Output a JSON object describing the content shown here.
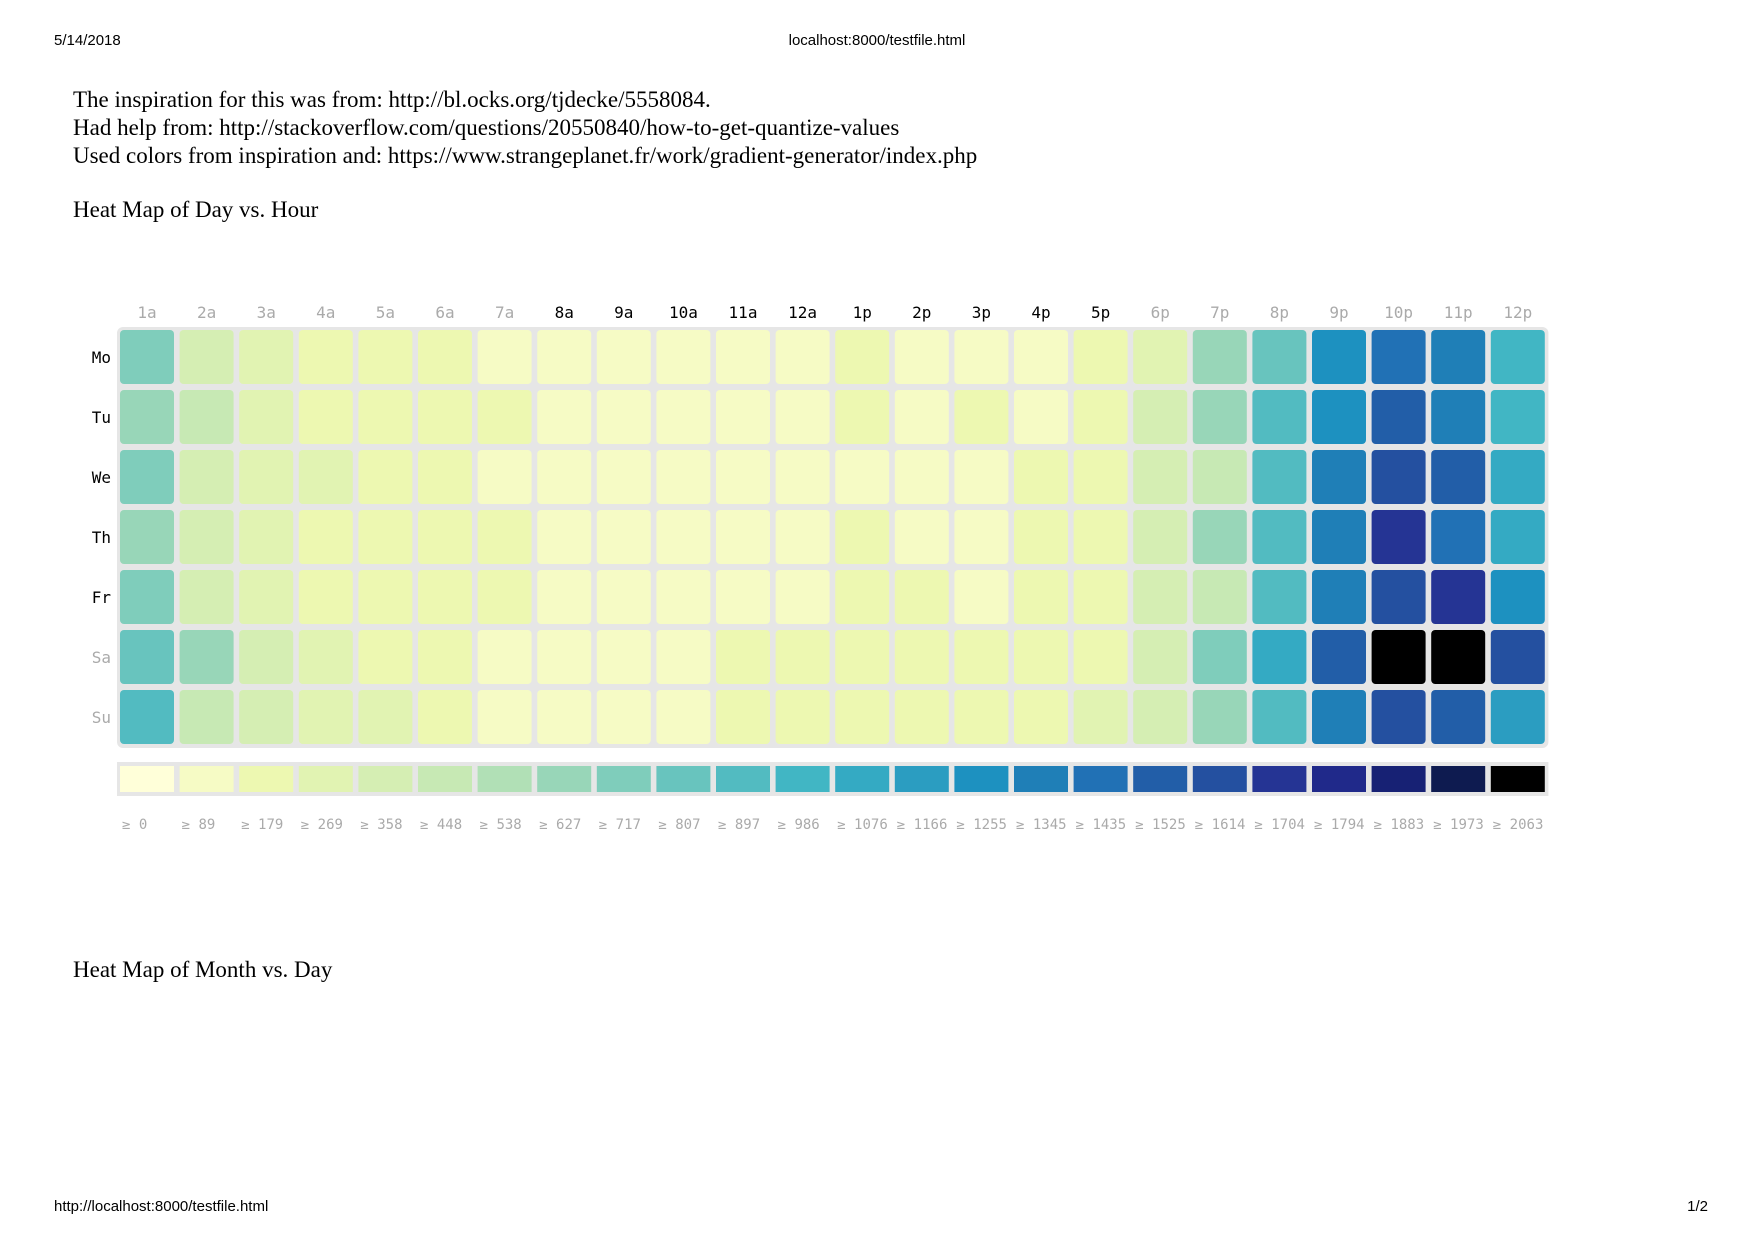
{
  "print_header": {
    "date": "5/14/2018",
    "title": "localhost:8000/testfile.html"
  },
  "print_footer": {
    "url": "http://localhost:8000/testfile.html",
    "page": "1/2"
  },
  "credits": [
    "The inspiration for this was from: http://bl.ocks.org/tjdecke/5558084.",
    "Had help from: http://stackoverflow.com/questions/20550840/how-to-get-quantize-values",
    "Used colors from inspiration and: https://www.strangeplanet.fr/work/gradient-generator/index.php"
  ],
  "section_titles": [
    "Heat Map of Day vs. Hour",
    "Heat Map of Month vs. Day"
  ],
  "chart_data": {
    "type": "heatmap",
    "title": "Heat Map of Day vs. Hour",
    "days": [
      "Mo",
      "Tu",
      "We",
      "Th",
      "Fr",
      "Sa",
      "Su"
    ],
    "hours": [
      "1a",
      "2a",
      "3a",
      "4a",
      "5a",
      "6a",
      "7a",
      "8a",
      "9a",
      "10a",
      "11a",
      "12a",
      "1p",
      "2p",
      "3p",
      "4p",
      "5p",
      "6p",
      "7p",
      "8p",
      "9p",
      "10p",
      "11p",
      "12p"
    ],
    "hour_label_active": [
      false,
      false,
      false,
      false,
      false,
      false,
      false,
      true,
      true,
      true,
      true,
      true,
      true,
      true,
      true,
      true,
      true,
      false,
      false,
      false,
      false,
      false,
      false,
      false
    ],
    "day_label_active": [
      true,
      true,
      true,
      true,
      true,
      false,
      false
    ],
    "label_colors": {
      "active": "#000000",
      "inactive": "#aaaaaa"
    },
    "legend_thresholds": [
      0,
      89,
      179,
      269,
      358,
      448,
      538,
      627,
      717,
      807,
      897,
      986,
      1076,
      1166,
      1255,
      1345,
      1435,
      1525,
      1614,
      1704,
      1794,
      1883,
      1973,
      2063
    ],
    "legend_labels": [
      "≥ 0",
      "≥ 89",
      "≥ 179",
      "≥ 269",
      "≥ 358",
      "≥ 448",
      "≥ 538",
      "≥ 627",
      "≥ 717",
      "≥ 807",
      "≥ 897",
      "≥ 986",
      "≥ 1076",
      "≥ 1166",
      "≥ 1255",
      "≥ 1345",
      "≥ 1435",
      "≥ 1525",
      "≥ 1614",
      "≥ 1704",
      "≥ 1794",
      "≥ 1883",
      "≥ 1973",
      "≥ 2063"
    ],
    "colors": [
      "#ffffd9",
      "#f6fbc5",
      "#edf8b1",
      "#e1f3b2",
      "#d5eeb3",
      "#c7e9b4",
      "#b1e0b6",
      "#98d6b8",
      "#7fcdbb",
      "#68c4be",
      "#52bbc1",
      "#41b6c4",
      "#34aac3",
      "#2b9dc1",
      "#1d91c0",
      "#1f7fb7",
      "#2171b5",
      "#225ea8",
      "#2450a0",
      "#253494",
      "#20298a",
      "#172174",
      "#0e1b50",
      "#000000"
    ],
    "values": [
      [
        717,
        358,
        269,
        179,
        179,
        179,
        89,
        89,
        89,
        89,
        89,
        89,
        179,
        89,
        89,
        89,
        179,
        269,
        627,
        807,
        1255,
        1435,
        1345,
        986
      ],
      [
        627,
        448,
        269,
        179,
        179,
        179,
        179,
        89,
        89,
        89,
        89,
        89,
        179,
        89,
        179,
        89,
        179,
        358,
        627,
        897,
        1255,
        1525,
        1345,
        986
      ],
      [
        717,
        358,
        269,
        269,
        179,
        179,
        89,
        89,
        89,
        89,
        89,
        89,
        89,
        89,
        89,
        179,
        179,
        358,
        448,
        897,
        1345,
        1614,
        1525,
        1076
      ],
      [
        627,
        358,
        269,
        179,
        179,
        179,
        179,
        89,
        89,
        89,
        89,
        89,
        179,
        89,
        89,
        179,
        179,
        358,
        627,
        897,
        1345,
        1704,
        1435,
        1076
      ],
      [
        717,
        358,
        269,
        179,
        179,
        179,
        179,
        89,
        89,
        89,
        89,
        89,
        179,
        179,
        89,
        179,
        179,
        358,
        448,
        897,
        1345,
        1614,
        1704,
        1255
      ],
      [
        807,
        627,
        358,
        269,
        179,
        179,
        89,
        89,
        89,
        89,
        179,
        179,
        179,
        179,
        179,
        179,
        179,
        358,
        717,
        1076,
        1525,
        2063,
        2063,
        1614
      ],
      [
        897,
        448,
        358,
        269,
        269,
        179,
        89,
        89,
        89,
        89,
        179,
        179,
        179,
        179,
        179,
        179,
        269,
        358,
        627,
        897,
        1345,
        1614,
        1525,
        1166
      ]
    ]
  }
}
